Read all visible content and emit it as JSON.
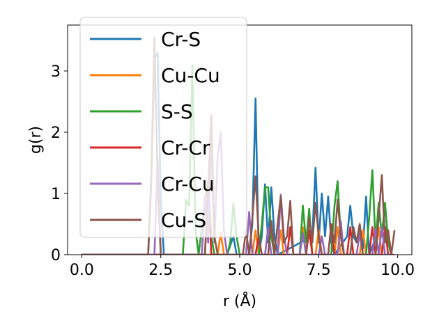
{
  "chart_data": {
    "type": "line",
    "xlabel": "r (Å)",
    "ylabel": "g(r)",
    "xlim": [
      -0.45,
      10.45
    ],
    "ylim": [
      0,
      3.75
    ],
    "xticks": [
      0.0,
      2.5,
      5.0,
      7.5,
      10.0
    ],
    "xtick_labels": [
      "0.0",
      "2.5",
      "5.0",
      "7.5",
      "10.0"
    ],
    "yticks": [
      0,
      1,
      2,
      3
    ],
    "ytick_labels": [
      "0",
      "1",
      "2",
      "3"
    ],
    "grid": false,
    "legend_position": "top-left",
    "series": [
      {
        "name": "Cr-S",
        "color": "#1f77b4",
        "points": [
          [
            0,
            0
          ],
          [
            2.1,
            0
          ],
          [
            2.2,
            1.2
          ],
          [
            2.3,
            3.2
          ],
          [
            2.4,
            3.3
          ],
          [
            2.5,
            0.9
          ],
          [
            2.6,
            0
          ],
          [
            4.6,
            0
          ],
          [
            4.8,
            0.3
          ],
          [
            4.9,
            0
          ],
          [
            5.3,
            0
          ],
          [
            5.4,
            0.5
          ],
          [
            5.5,
            2.55
          ],
          [
            5.6,
            0
          ],
          [
            5.7,
            0.3
          ],
          [
            5.8,
            1.15
          ],
          [
            5.9,
            0.2
          ],
          [
            6.0,
            1.1
          ],
          [
            6.1,
            0.3
          ],
          [
            6.2,
            0
          ],
          [
            7.3,
            0.3
          ],
          [
            7.4,
            1.42
          ],
          [
            7.5,
            0.2
          ],
          [
            7.6,
            1.0
          ],
          [
            7.7,
            0.3
          ],
          [
            7.8,
            0.95
          ],
          [
            7.9,
            0.2
          ],
          [
            8.0,
            0
          ],
          [
            8.4,
            0.3
          ],
          [
            8.5,
            0.8
          ],
          [
            8.6,
            0.3
          ],
          [
            8.7,
            0.2
          ],
          [
            8.8,
            0.5
          ],
          [
            8.9,
            0.1
          ],
          [
            9.0,
            0.95
          ],
          [
            9.1,
            0
          ],
          [
            9.4,
            0.4
          ],
          [
            9.5,
            0.3
          ],
          [
            9.6,
            0.8
          ],
          [
            9.7,
            0.2
          ],
          [
            9.8,
            0
          ]
        ]
      },
      {
        "name": "Cu-Cu",
        "color": "#ff7f0e",
        "points": [
          [
            0,
            0
          ],
          [
            4.3,
            0
          ],
          [
            4.4,
            0.35
          ],
          [
            4.5,
            0
          ],
          [
            5.4,
            0
          ],
          [
            5.5,
            0.4
          ],
          [
            5.6,
            0
          ],
          [
            6.2,
            0
          ],
          [
            6.3,
            0.4
          ],
          [
            6.4,
            0
          ],
          [
            6.9,
            0
          ],
          [
            7.0,
            0.45
          ],
          [
            7.1,
            0
          ],
          [
            7.4,
            0
          ],
          [
            7.5,
            0.4
          ],
          [
            7.6,
            0
          ],
          [
            8.0,
            0
          ],
          [
            8.1,
            0.45
          ],
          [
            8.2,
            0
          ],
          [
            8.8,
            0
          ],
          [
            8.9,
            0.4
          ],
          [
            9.0,
            0
          ],
          [
            9.3,
            0
          ],
          [
            9.4,
            0.45
          ],
          [
            9.5,
            0
          ],
          [
            9.8,
            0
          ]
        ]
      },
      {
        "name": "S-S",
        "color": "#2ca02c",
        "points": [
          [
            0,
            0
          ],
          [
            3.2,
            0
          ],
          [
            3.3,
            0.9
          ],
          [
            3.4,
            0.8
          ],
          [
            3.5,
            3.1
          ],
          [
            3.6,
            0.4
          ],
          [
            3.7,
            0
          ],
          [
            3.9,
            0.9
          ],
          [
            4.0,
            1.2
          ],
          [
            4.1,
            0.3
          ],
          [
            4.2,
            0
          ],
          [
            4.6,
            0
          ],
          [
            4.7,
            0.2
          ],
          [
            4.8,
            0.84
          ],
          [
            4.9,
            0.3
          ],
          [
            5.0,
            0
          ],
          [
            5.6,
            0
          ],
          [
            5.7,
            0.5
          ],
          [
            5.8,
            1.1
          ],
          [
            5.9,
            1.1
          ],
          [
            6.0,
            0.3
          ],
          [
            6.1,
            0
          ],
          [
            6.9,
            0
          ],
          [
            7.0,
            0.8
          ],
          [
            7.1,
            0.2
          ],
          [
            7.2,
            0.75
          ],
          [
            7.3,
            0
          ],
          [
            7.9,
            0
          ],
          [
            8.0,
            0.8
          ],
          [
            8.1,
            1.2
          ],
          [
            8.2,
            0.3
          ],
          [
            8.3,
            0
          ],
          [
            9.0,
            0
          ],
          [
            9.1,
            0.6
          ],
          [
            9.2,
            1.38
          ],
          [
            9.3,
            0.2
          ],
          [
            9.4,
            0.85
          ],
          [
            9.5,
            0.3
          ],
          [
            9.6,
            0.85
          ],
          [
            9.7,
            0.2
          ],
          [
            9.8,
            0
          ]
        ]
      },
      {
        "name": "Cr-Cr",
        "color": "#d62728",
        "points": [
          [
            0,
            0
          ],
          [
            3.9,
            0
          ],
          [
            4.0,
            1.2
          ],
          [
            4.1,
            0
          ],
          [
            5.5,
            0
          ],
          [
            5.6,
            0.3
          ],
          [
            5.7,
            0
          ],
          [
            5.9,
            0
          ],
          [
            6.0,
            0.55
          ],
          [
            6.1,
            0
          ],
          [
            6.5,
            0
          ],
          [
            6.6,
            0.45
          ],
          [
            6.7,
            0
          ],
          [
            7.1,
            0
          ],
          [
            7.2,
            0.4
          ],
          [
            7.3,
            0
          ],
          [
            7.8,
            0
          ],
          [
            7.9,
            0.5
          ],
          [
            8.0,
            0
          ],
          [
            8.4,
            0
          ],
          [
            8.5,
            0.45
          ],
          [
            8.6,
            0
          ],
          [
            9.1,
            0
          ],
          [
            9.2,
            0.45
          ],
          [
            9.3,
            0
          ],
          [
            9.5,
            0
          ],
          [
            9.6,
            0.45
          ],
          [
            9.7,
            0
          ],
          [
            9.9,
            0
          ]
        ]
      },
      {
        "name": "Cr-Cu",
        "color": "#9467bd",
        "points": [
          [
            0,
            0
          ],
          [
            2.3,
            0
          ],
          [
            2.4,
            1.6
          ],
          [
            2.5,
            0
          ],
          [
            3.8,
            0
          ],
          [
            3.9,
            0.95
          ],
          [
            4.0,
            0.2
          ],
          [
            4.1,
            1.9
          ],
          [
            4.2,
            0.2
          ],
          [
            4.3,
            1.6
          ],
          [
            4.4,
            2.0
          ],
          [
            4.5,
            0.4
          ],
          [
            4.6,
            0
          ],
          [
            5.2,
            0
          ],
          [
            5.3,
            0.7
          ],
          [
            5.4,
            0
          ],
          [
            5.8,
            0
          ],
          [
            5.9,
            0.45
          ],
          [
            6.0,
            0
          ],
          [
            6.2,
            0
          ],
          [
            6.3,
            0.98
          ],
          [
            6.4,
            0.3
          ],
          [
            6.5,
            0
          ],
          [
            6.9,
            0
          ],
          [
            7.0,
            0.35
          ],
          [
            7.1,
            0
          ],
          [
            7.5,
            0
          ],
          [
            7.6,
            0.3
          ],
          [
            7.7,
            0
          ],
          [
            8.1,
            0
          ],
          [
            8.2,
            0.55
          ],
          [
            8.3,
            0
          ],
          [
            8.7,
            0
          ],
          [
            8.8,
            0.35
          ],
          [
            8.9,
            0
          ],
          [
            9.2,
            0
          ],
          [
            9.3,
            0.42
          ],
          [
            9.4,
            0
          ],
          [
            9.5,
            0.45
          ],
          [
            9.6,
            0
          ],
          [
            9.8,
            0
          ]
        ]
      },
      {
        "name": "Cu-S",
        "color": "#8c564b",
        "points": [
          [
            0,
            0
          ],
          [
            2.1,
            0
          ],
          [
            2.2,
            1.3
          ],
          [
            2.3,
            3.55
          ],
          [
            2.4,
            1.2
          ],
          [
            2.5,
            0
          ],
          [
            3.9,
            0
          ],
          [
            4.0,
            1.05
          ],
          [
            4.1,
            2.28
          ],
          [
            4.2,
            0.3
          ],
          [
            4.3,
            0
          ],
          [
            5.1,
            0
          ],
          [
            5.2,
            0.4
          ],
          [
            5.3,
            0
          ],
          [
            5.4,
            0.6
          ],
          [
            5.5,
            1.28
          ],
          [
            5.6,
            0.3
          ],
          [
            5.7,
            0
          ],
          [
            5.9,
            0
          ],
          [
            6.0,
            0.55
          ],
          [
            6.1,
            0
          ],
          [
            6.2,
            0.5
          ],
          [
            6.3,
            0.95
          ],
          [
            6.4,
            0.2
          ],
          [
            6.5,
            0.3
          ],
          [
            6.6,
            0.88
          ],
          [
            6.7,
            0
          ],
          [
            7.1,
            0
          ],
          [
            7.2,
            0.6
          ],
          [
            7.3,
            0.2
          ],
          [
            7.4,
            0.85
          ],
          [
            7.5,
            0.3
          ],
          [
            7.6,
            0
          ],
          [
            7.8,
            0
          ],
          [
            7.9,
            0.45
          ],
          [
            8.0,
            0.2
          ],
          [
            8.1,
            0.9
          ],
          [
            8.2,
            0.3
          ],
          [
            8.3,
            0
          ],
          [
            8.5,
            0
          ],
          [
            8.6,
            0.45
          ],
          [
            8.7,
            0.2
          ],
          [
            8.8,
            0.5
          ],
          [
            8.9,
            0
          ],
          [
            9.3,
            0
          ],
          [
            9.4,
            0.6
          ],
          [
            9.5,
            1.3
          ],
          [
            9.6,
            0.2
          ],
          [
            9.7,
            0.4
          ],
          [
            9.8,
            0
          ],
          [
            9.9,
            0.4
          ]
        ]
      }
    ]
  }
}
